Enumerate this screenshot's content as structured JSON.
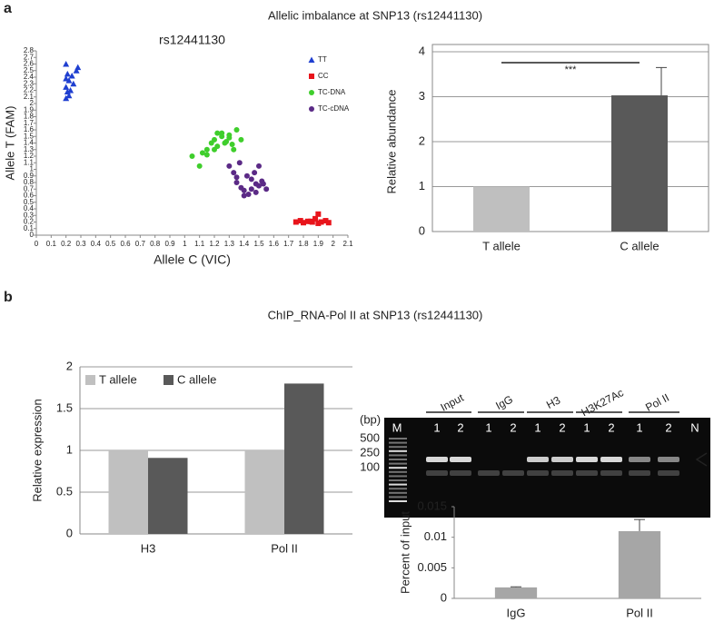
{
  "figure": {
    "panel_labels": [
      "a",
      "b"
    ],
    "section_titles": [
      "Allelic imbalance at SNP13 (rs12441130)",
      "ChIP_RNA-Pol II at SNP13 (rs12441130)"
    ]
  },
  "gel": {
    "markers": [
      "M",
      "N"
    ],
    "groups": [
      {
        "name": "Input",
        "lanes": [
          "1",
          "2"
        ]
      },
      {
        "name": "IgG",
        "lanes": [
          "1",
          "2"
        ]
      },
      {
        "name": "H3",
        "lanes": [
          "1",
          "2"
        ]
      },
      {
        "name": "H3K27Ac",
        "lanes": [
          "1",
          "2"
        ]
      },
      {
        "name": "Pol II",
        "lanes": [
          "1",
          "2"
        ]
      }
    ],
    "size_label": "(bp)",
    "sizes": [
      "500",
      "250",
      "100"
    ]
  },
  "chart_data": [
    {
      "type": "scatter",
      "title": "rs12441130",
      "x_label": "Allele C (VIC)",
      "y_label": "Allele T (FAM)",
      "grid": false,
      "legend": "top-right",
      "xlim": [
        0,
        2.1
      ],
      "ylim": [
        0,
        2.8
      ],
      "xticks": [
        0,
        0.1,
        0.2,
        0.3,
        0.4,
        0.5,
        0.6,
        0.7,
        0.8,
        0.9,
        1,
        1.1,
        1.2,
        1.3,
        1.4,
        1.5,
        1.6,
        1.7,
        1.8,
        1.9,
        2,
        2.1
      ],
      "yticks": [
        0,
        0.1,
        0.2,
        0.3,
        0.4,
        0.5,
        0.6,
        0.7,
        0.8,
        0.9,
        1,
        1.1,
        1.2,
        1.3,
        1.4,
        1.5,
        1.6,
        1.7,
        1.8,
        1.9,
        2,
        2.1,
        2.2,
        2.3,
        2.4,
        2.5,
        2.6,
        2.7,
        2.8
      ],
      "series": [
        {
          "name": "TT",
          "color": "#1f3fd0",
          "marker": "triangle",
          "x": [
            0.2,
            0.21,
            0.2,
            0.22,
            0.24,
            0.2,
            0.21,
            0.23,
            0.25,
            0.28,
            0.27,
            0.2,
            0.22
          ],
          "values": [
            2.6,
            2.45,
            2.38,
            2.35,
            2.42,
            2.25,
            2.18,
            2.2,
            2.3,
            2.55,
            2.5,
            2.08,
            2.12
          ]
        },
        {
          "name": "CC",
          "color": "#e8141b",
          "marker": "square",
          "x": [
            1.75,
            1.78,
            1.8,
            1.83,
            1.86,
            1.88,
            1.9,
            1.92,
            1.95,
            1.97,
            1.9,
            1.85
          ],
          "values": [
            0.2,
            0.22,
            0.19,
            0.21,
            0.2,
            0.25,
            0.32,
            0.2,
            0.22,
            0.19,
            0.18,
            0.21
          ]
        },
        {
          "name": "TC-DNA",
          "color": "#3fce2c",
          "marker": "circle",
          "x": [
            1.05,
            1.1,
            1.12,
            1.15,
            1.18,
            1.2,
            1.22,
            1.25,
            1.25,
            1.28,
            1.3,
            1.32,
            1.35,
            1.38,
            1.15,
            1.2,
            1.27,
            1.3,
            1.22,
            1.33
          ],
          "values": [
            1.2,
            1.05,
            1.25,
            1.3,
            1.4,
            1.45,
            1.35,
            1.5,
            1.55,
            1.42,
            1.48,
            1.38,
            1.6,
            1.45,
            1.22,
            1.3,
            1.4,
            1.52,
            1.55,
            1.3
          ]
        },
        {
          "name": "TC-cDNA",
          "color": "#5b2a86",
          "marker": "circle",
          "x": [
            1.3,
            1.33,
            1.35,
            1.38,
            1.4,
            1.42,
            1.45,
            1.48,
            1.5,
            1.52,
            1.55,
            1.37,
            1.43,
            1.47,
            1.5,
            1.4,
            1.45,
            1.35,
            1.53,
            1.48
          ],
          "values": [
            1.05,
            0.95,
            0.8,
            0.72,
            0.68,
            0.9,
            0.85,
            0.78,
            0.75,
            0.82,
            0.7,
            1.1,
            0.62,
            0.95,
            1.05,
            0.6,
            0.7,
            0.88,
            0.78,
            0.65
          ]
        }
      ]
    },
    {
      "type": "bar",
      "y_label": "Relative abundance",
      "grid": true,
      "categories": [
        "T allele",
        "C allele"
      ],
      "values": [
        1,
        3.03
      ],
      "errors": [
        null,
        0.62
      ],
      "colors": [
        "#bfbfbf",
        "#595959"
      ],
      "ylim": [
        0,
        4
      ],
      "yticks": [
        0,
        1,
        2,
        3,
        4
      ],
      "annotation": "***"
    },
    {
      "type": "bar",
      "y_label": "Relative expression",
      "grid": true,
      "legend": "top-left",
      "categories": [
        "H3",
        "Pol II"
      ],
      "ylim": [
        0,
        2
      ],
      "yticks": [
        0,
        0.5,
        1,
        1.5,
        2
      ],
      "series": [
        {
          "name": "T allele",
          "color": "#c0c0c0",
          "values": [
            1,
            1
          ]
        },
        {
          "name": "C allele",
          "color": "#595959",
          "values": [
            0.91,
            1.8
          ]
        }
      ]
    },
    {
      "type": "bar",
      "y_label": "Percent of input",
      "grid": false,
      "categories": [
        "IgG",
        "Pol II"
      ],
      "values": [
        0.0018,
        0.011
      ],
      "errors": [
        0.0001,
        0.0019
      ],
      "colors": [
        "#a6a6a6",
        "#a6a6a6"
      ],
      "ylim": [
        0,
        0.015
      ],
      "yticks": [
        0,
        0.005,
        0.01,
        0.015
      ]
    }
  ]
}
